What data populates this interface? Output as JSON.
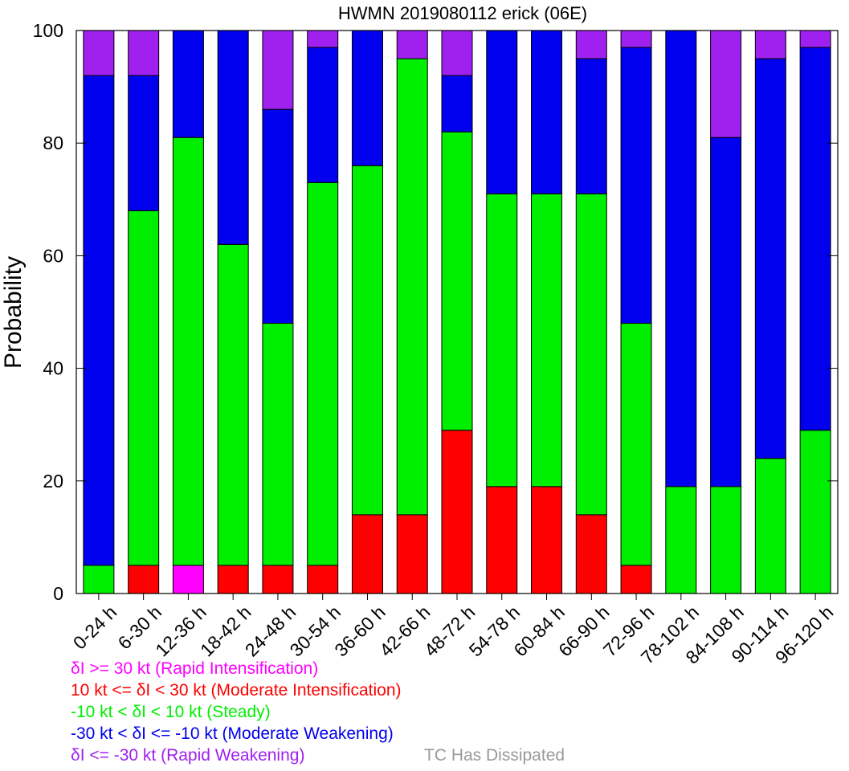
{
  "chart_data": {
    "type": "bar",
    "stacked": true,
    "title": "HWMN 2019080112 erick (06E)",
    "xlabel": "",
    "ylabel": "Probability",
    "ylim": [
      0,
      100
    ],
    "yticks": [
      0,
      20,
      40,
      60,
      80,
      100
    ],
    "grid": false,
    "legend_placement": "bottom-left",
    "categories": [
      "0-24 h",
      "6-30 h",
      "12-36 h",
      "18-42 h",
      "24-48 h",
      "30-54 h",
      "36-60 h",
      "42-66 h",
      "48-72 h",
      "54-78 h",
      "60-84 h",
      "66-90 h",
      "72-96 h",
      "78-102 h",
      "84-108 h",
      "90-114 h",
      "96-120 h"
    ],
    "series": [
      {
        "name": "δI >= 30 kt (Rapid Intensification)",
        "color": "#ff00ff",
        "values": [
          0,
          0,
          5,
          0,
          0,
          0,
          0,
          0,
          0,
          0,
          0,
          0,
          0,
          0,
          0,
          0,
          0
        ]
      },
      {
        "name": "10 kt <= δI < 30 kt (Moderate Intensification)",
        "color": "#ff0000",
        "values": [
          0,
          5,
          0,
          5,
          5,
          5,
          14,
          14,
          29,
          19,
          19,
          14,
          5,
          0,
          0,
          0,
          0
        ]
      },
      {
        "name": "-10 kt < δI < 10 kt (Steady)",
        "color": "#00ee00",
        "values": [
          5,
          63,
          76,
          57,
          43,
          68,
          62,
          81,
          53,
          52,
          52,
          57,
          43,
          19,
          19,
          24,
          29
        ]
      },
      {
        "name": "-30 kt < δI <= -10 kt (Moderate Weakening)",
        "color": "#0000ee",
        "values": [
          87,
          24,
          19,
          38,
          38,
          24,
          24,
          0,
          10,
          29,
          29,
          24,
          49,
          81,
          62,
          71,
          68
        ]
      },
      {
        "name": "δI <= -30 kt (Rapid Weakening)",
        "color": "#a020f0",
        "values": [
          8,
          8,
          0,
          0,
          14,
          3,
          0,
          5,
          8,
          0,
          0,
          5,
          3,
          0,
          19,
          5,
          3
        ]
      },
      {
        "name": "TC Has Dissipated",
        "color": "#999999",
        "values": [
          0,
          0,
          0,
          0,
          0,
          0,
          0,
          0,
          0,
          0,
          0,
          0,
          0,
          0,
          0,
          0,
          0
        ]
      }
    ]
  }
}
